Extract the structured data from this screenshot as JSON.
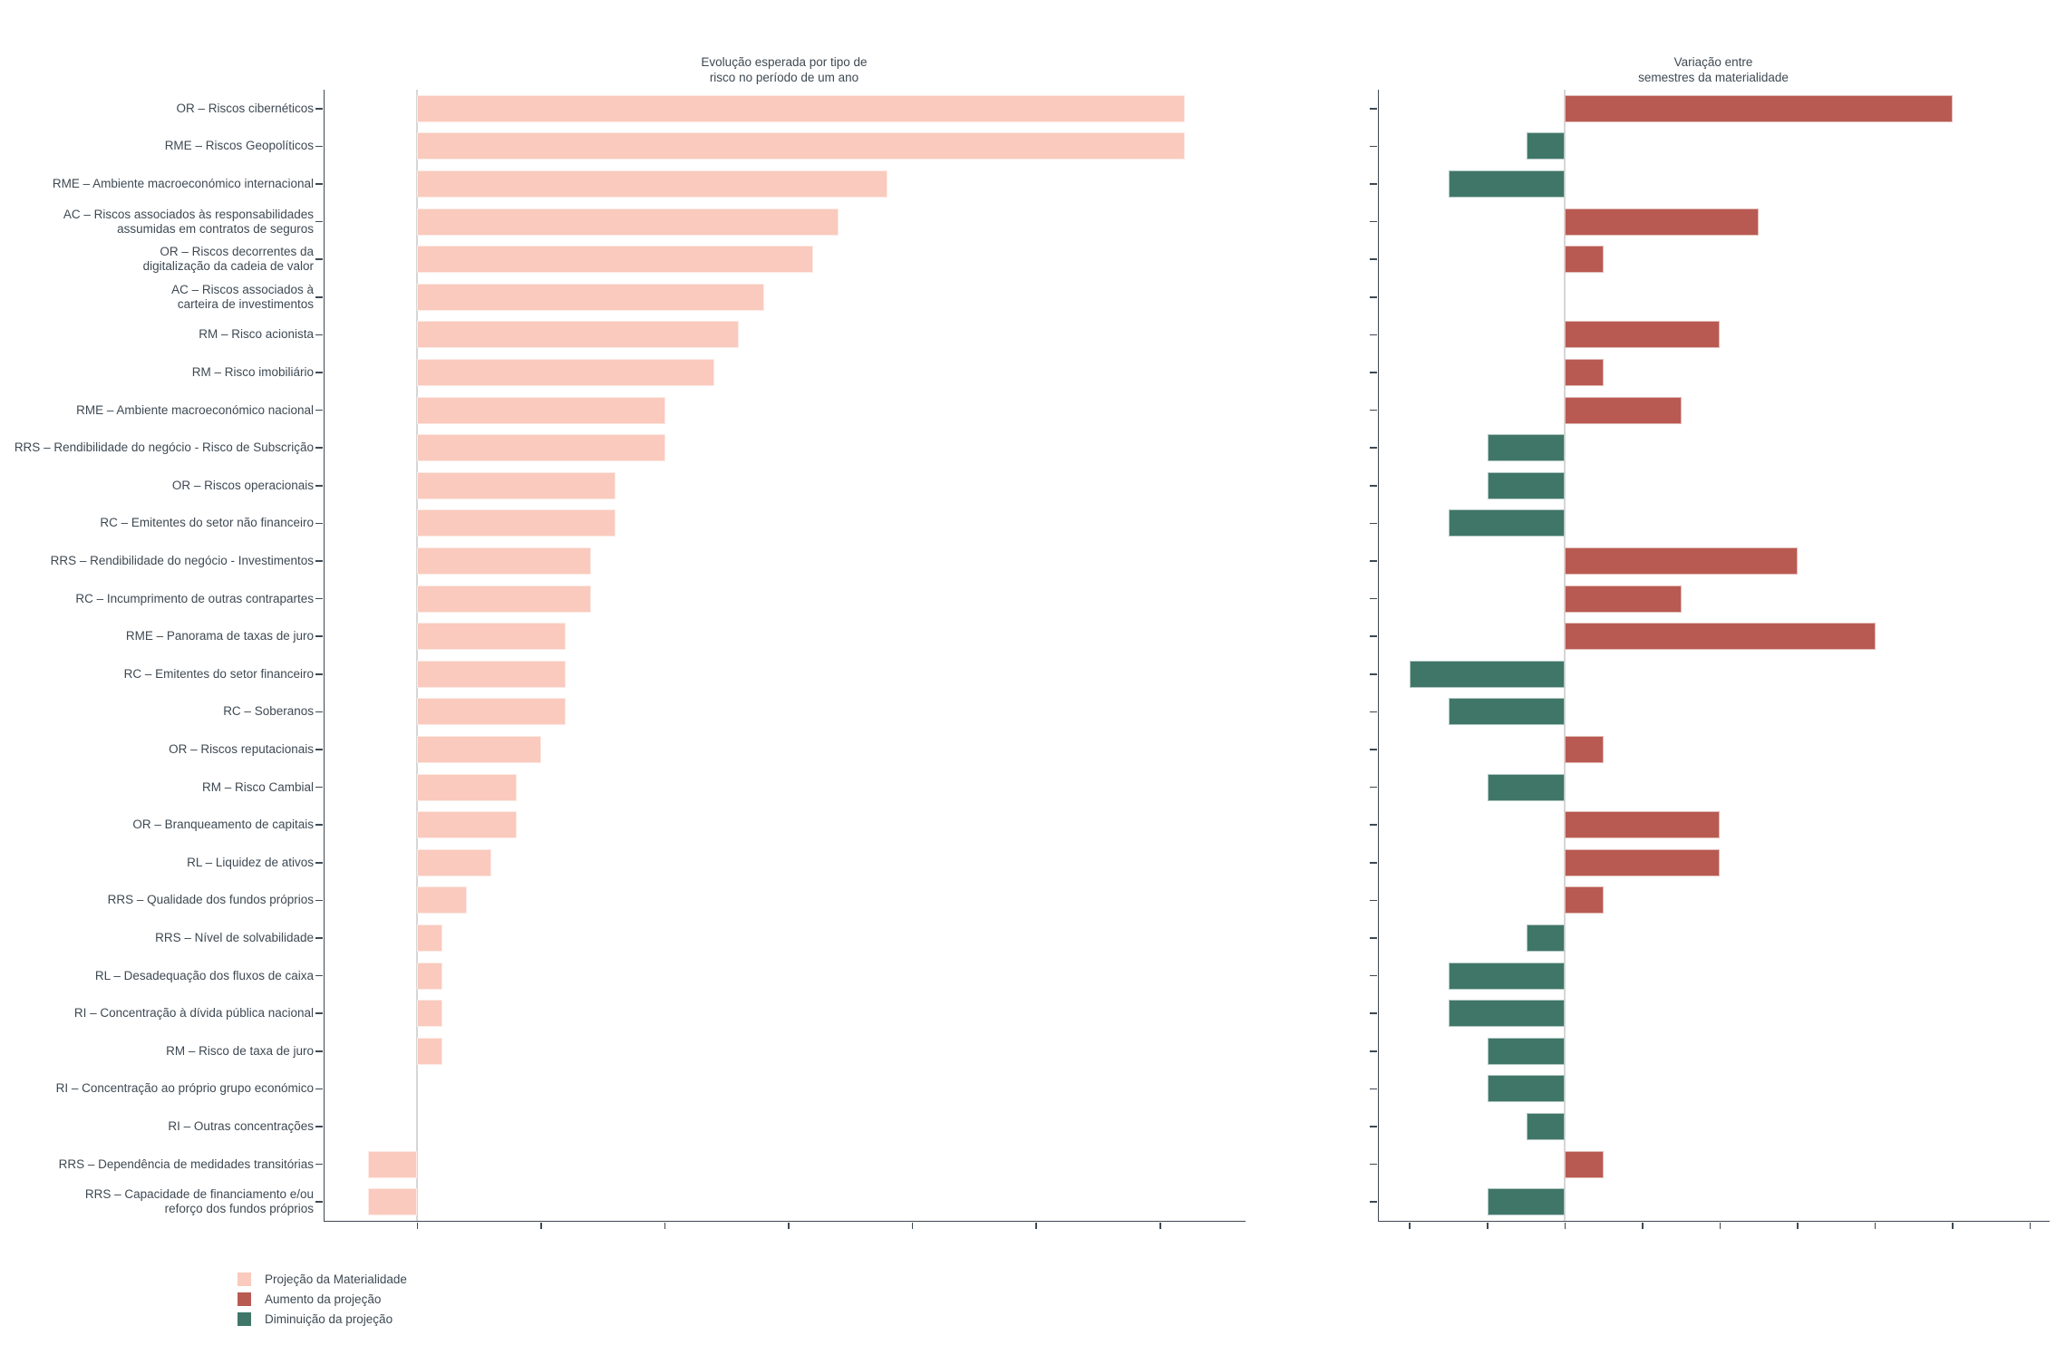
{
  "chart_data": {
    "type": "bar",
    "orientation": "horizontal",
    "background": "#FFFFFF",
    "axis_tick_labels_visible": false,
    "gridlines": false,
    "legend_position": "bottom-left",
    "categories": [
      "OR – Riscos cibernéticos",
      "RME – Riscos Geopolíticos",
      "RME – Ambiente macroeconómico internacional",
      "AC – Riscos associados às responsabilidades\nassumidas em contratos de seguros",
      "OR – Riscos decorrentes da\ndigitalização da cadeia de valor",
      "AC – Riscos associados à\ncarteira de investimentos",
      "RM – Risco acionista",
      "RM – Risco imobiliário",
      "RME – Ambiente macroeconómico nacional",
      "RRS – Rendibilidade do negócio - Risco de Subscrição",
      "OR – Riscos operacionais",
      "RC – Emitentes do setor não financeiro",
      "RRS – Rendibilidade do negócio - Investimentos",
      "RC – Incumprimento de outras contrapartes",
      "RME – Panorama de taxas de juro",
      "RC – Emitentes do setor financeiro",
      "RC – Soberanos",
      "OR – Riscos reputacionais",
      "RM – Risco Cambial",
      "OR – Branqueamento de capitais",
      "RL – Liquidez de ativos",
      "RRS – Qualidade dos fundos próprios",
      "RRS – Nível de solvabilidade",
      "RL – Desadequação dos fluxos de caixa",
      "RI – Concentração à dívida pública nacional",
      "RM – Risco de taxa de juro",
      "RI – Concentração ao próprio grupo económico",
      "RI – Outras concentrações",
      "RRS – Dependência de medidades transitórias",
      "RRS – Capacidade de financiamento e/ou\nreforço dos fundos próprios"
    ],
    "series": [
      {
        "name": "Projeção da Materialidade",
        "panel": "left",
        "color": "#F9CABD",
        "values": [
          6.2,
          6.2,
          3.8,
          3.4,
          3.2,
          2.8,
          2.6,
          2.4,
          2.0,
          2.0,
          1.6,
          1.6,
          1.4,
          1.4,
          1.2,
          1.2,
          1.2,
          1.0,
          0.8,
          0.8,
          0.6,
          0.4,
          0.2,
          0.2,
          0.2,
          0.2,
          0,
          0,
          -0.4,
          -0.4
        ]
      },
      {
        "name": "Variação entre semestres da materialidade",
        "panel": "right",
        "positive_label": "Aumento da projeção",
        "negative_label": "Diminuição da projeção",
        "color_positive": "#B85A52",
        "color_negative": "#407668",
        "values": [
          1.0,
          -0.1,
          -0.3,
          0.5,
          0.1,
          0,
          0.4,
          0.1,
          0.3,
          -0.2,
          -0.2,
          -0.3,
          0.6,
          0.3,
          0.8,
          -0.4,
          -0.3,
          0.1,
          -0.2,
          0.4,
          0.4,
          0.1,
          -0.1,
          -0.3,
          -0.3,
          -0.2,
          -0.2,
          -0.1,
          0.1,
          -0.2
        ]
      }
    ],
    "panels": [
      {
        "id": "left",
        "title": "Evolução esperada por tipo de\nrisco no período de um ano",
        "x_min": -0.75,
        "x_max": 6.69,
        "tick_min": 0,
        "tick_max": 6,
        "tick_step": 1
      },
      {
        "id": "right",
        "title": "Variação entre\nsemestres da materialidade",
        "x_min": -0.48,
        "x_max": 1.25,
        "tick_min": -0.4,
        "tick_max": 1.2,
        "tick_step": 0.2
      }
    ]
  },
  "legend": {
    "items": [
      {
        "label": "Projeção da Materialidade",
        "color": "#F9CABD"
      },
      {
        "label": "Aumento da projeção",
        "color": "#B85A52"
      },
      {
        "label": "Diminuição da projeção",
        "color": "#407668"
      }
    ]
  }
}
